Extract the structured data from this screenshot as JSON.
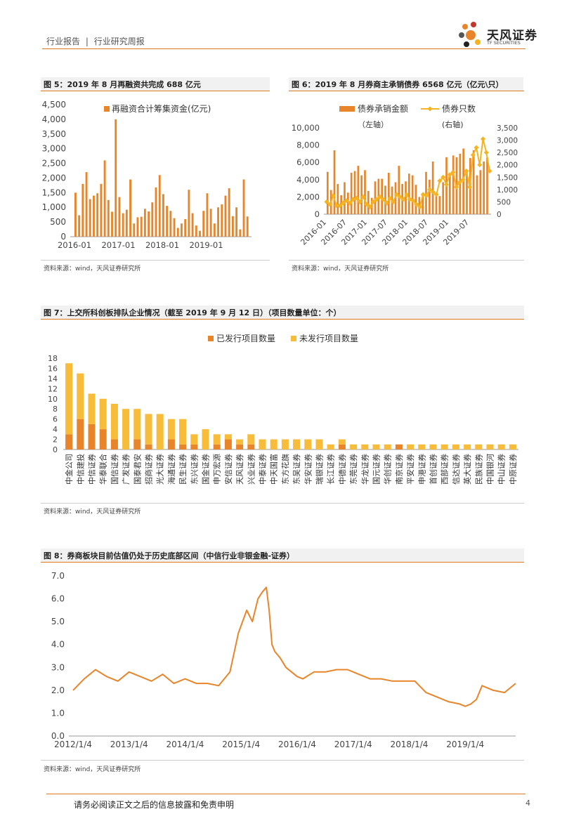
{
  "header": {
    "report_type": "行业报告",
    "separator": "|",
    "report_subtype": "行业研究周报",
    "logo_cn": "天风证券",
    "logo_en": "TF SECURITIES",
    "accent": "#e07a1f"
  },
  "figures": {
    "fig5": {
      "caption": "图 5：2019 年 8 月再融资共完成 688 亿元",
      "source": "资料来源：wind，天风证券研究所"
    },
    "fig6": {
      "caption": "图 6：2019 年 8 月券商主承销债券 6568 亿元（亿元\\只）",
      "source": "资料来源：wind，天风证券研究所"
    },
    "fig7": {
      "caption": "图 7：上交所科创板排队企业情况（截至 2019 年 9 月 12 日）（项目数量单位：个）",
      "source": "资料来源：wind，天风证券研究所"
    },
    "fig8": {
      "caption": "图 8：券商板块目前估值仍处于历史底部区间（中信行业非银金融-证券）",
      "source": "资料来源：wind，天风证券研究所"
    }
  },
  "footer": {
    "disclaimer": "请务必阅读正文之后的信息披露和免责申明",
    "page": "4"
  },
  "chart_data": [
    {
      "id": "fig5",
      "type": "bar",
      "color": "#e8852a",
      "series": [
        {
          "name": "再融资合计筹集资金(亿元)",
          "values": [
            1500,
            730,
            1800,
            2200,
            1280,
            1400,
            1480,
            1800,
            2600,
            1250,
            850,
            4000,
            1350,
            800,
            920,
            1950,
            450,
            660,
            680,
            950,
            860,
            1170,
            1680,
            2100,
            1450,
            1050,
            880,
            630,
            300,
            450,
            600,
            1600,
            800,
            380,
            200,
            880,
            1480,
            950,
            450,
            1000,
            1100,
            1400,
            1650,
            700,
            1000,
            250,
            1950,
            688
          ]
        }
      ],
      "x_tick_labels": [
        "2016-01",
        "2017-01",
        "2018-01",
        "2019-01"
      ],
      "ylim": [
        0,
        4500
      ],
      "y_ticks": [
        "0",
        "500",
        "1,000",
        "1,500",
        "2,000",
        "2,500",
        "3,000",
        "3,500",
        "4,000",
        "4,500"
      ],
      "legend": "top-center",
      "grid": false
    },
    {
      "id": "fig6",
      "type": "bar+line",
      "series": [
        {
          "name": "债券承销金额",
          "name_note": "（左轴）",
          "axis": "left",
          "type": "bar",
          "color": "#e8852a",
          "values": [
            4900,
            2800,
            7400,
            3500,
            2200,
            3700,
            2500,
            4800,
            5000,
            5600,
            4500,
            5100,
            2700,
            1900,
            3800,
            4100,
            4100,
            3300,
            4800,
            3200,
            3700,
            5600,
            3500,
            3800,
            4700,
            4500,
            3400,
            2000,
            2400,
            4900,
            4000,
            6100,
            2100,
            2100,
            3700,
            6600,
            4400,
            6800,
            6600,
            7000,
            7600,
            5000,
            6500,
            7400,
            4500,
            5100,
            6100,
            6568
          ]
        },
        {
          "name": "债券只数",
          "name_note": "(右轴)",
          "axis": "right",
          "type": "line",
          "color": "#f4b321",
          "values": [
            500,
            400,
            750,
            350,
            350,
            450,
            550,
            450,
            600,
            650,
            500,
            700,
            400,
            300,
            500,
            600,
            700,
            600,
            450,
            650,
            500,
            800,
            700,
            600,
            800,
            600,
            550,
            400,
            300,
            800,
            750,
            1000,
            900,
            800,
            1350,
            1500,
            1200,
            1600,
            1700,
            1100,
            1300,
            1400,
            1750,
            1100,
            2400,
            2700,
            2000,
            3050,
            2500,
            1750
          ]
        }
      ],
      "x_tick_labels": [
        "2016-01",
        "2016-07",
        "2017-01",
        "2017-07",
        "2018-01",
        "2018-07",
        "2019-01",
        "2019-07"
      ],
      "ylim_left": [
        0,
        10000
      ],
      "y_ticks_left": [
        "0",
        "2,000",
        "4,000",
        "6,000",
        "8,000",
        "10,000"
      ],
      "ylim_right": [
        0,
        3500
      ],
      "y_ticks_right": [
        "0",
        "500",
        "1,000",
        "1,500",
        "2,000",
        "2,500",
        "3,000",
        "3,500"
      ],
      "legend": "top"
    },
    {
      "id": "fig7",
      "type": "stacked-bar",
      "categories": [
        "中金公司",
        "中信建投",
        "中信证券",
        "华泰联合",
        "国信证券",
        "广发证券",
        "国泰君安",
        "招商证券",
        "光大证券",
        "海通证券",
        "民生证券",
        "东兴证券",
        "国金证券",
        "申万宏源",
        "安信证券",
        "天风证券",
        "兴业证券",
        "中泰证券",
        "中天国富",
        "东方花旗",
        "东吴证券",
        "华安证券",
        "瑞银证券",
        "长江证券",
        "中德证券",
        "东莞证券",
        "华龙证券",
        "国元证券",
        "华创证券",
        "南京证券",
        "平安证券",
        "申港证券",
        "首创证券",
        "西部证券",
        "信达证券",
        "英大证券",
        "民族证券",
        "中国银河",
        "中山证券",
        "中原证券"
      ],
      "series": [
        {
          "name": "已发行项目数量",
          "color": "#e8852a",
          "values": [
            3,
            6,
            5,
            4,
            2,
            0,
            2,
            1,
            0,
            2,
            1,
            1,
            0,
            1,
            2,
            1,
            1,
            0,
            0,
            0,
            0,
            0,
            0,
            0,
            1,
            0,
            0,
            0,
            0,
            1,
            0,
            0,
            0,
            0,
            0,
            0,
            0,
            0,
            0,
            0
          ]
        },
        {
          "name": "未发行项目数量",
          "color": "#f7bc3a",
          "values": [
            14,
            9,
            6,
            6,
            7,
            8,
            6,
            6,
            7,
            4,
            5,
            2,
            4,
            2,
            1,
            1,
            2,
            2,
            2,
            2,
            2,
            2,
            2,
            1,
            1,
            1,
            1,
            1,
            1,
            0,
            1,
            1,
            1,
            1,
            1,
            1,
            1,
            1,
            1,
            1
          ]
        }
      ],
      "ylim": [
        0,
        18
      ],
      "y_ticks": [
        "0",
        "2",
        "4",
        "6",
        "8",
        "10",
        "12",
        "14",
        "16",
        "18"
      ],
      "legend": "top-center"
    },
    {
      "id": "fig8",
      "type": "line",
      "color": "#e8852a",
      "x_tick_labels": [
        "2012/1/4",
        "2013/1/4",
        "2014/1/4",
        "2015/1/4",
        "2016/1/4",
        "2017/1/4",
        "2018/1/4",
        "2019/1/4"
      ],
      "ylim": [
        0,
        7.0
      ],
      "y_ticks": [
        "0.0",
        "1.0",
        "2.0",
        "3.0",
        "4.0",
        "5.0",
        "6.0",
        "7.0"
      ],
      "series": [
        {
          "x": [
            2012.0,
            2012.2,
            2012.4,
            2012.6,
            2012.8,
            2013.0,
            2013.2,
            2013.4,
            2013.6,
            2013.8,
            2014.0,
            2014.2,
            2014.4,
            2014.6,
            2014.8,
            2014.95,
            2015.1,
            2015.2,
            2015.3,
            2015.38,
            2015.45,
            2015.5,
            2015.55,
            2015.6,
            2015.7,
            2015.8,
            2015.9,
            2016.0,
            2016.1,
            2016.3,
            2016.5,
            2016.7,
            2016.9,
            2017.1,
            2017.3,
            2017.5,
            2017.7,
            2017.9,
            2018.1,
            2018.3,
            2018.5,
            2018.7,
            2018.9,
            2019.0,
            2019.1,
            2019.2,
            2019.3,
            2019.5,
            2019.7,
            2019.9
          ],
          "y": [
            2.0,
            2.5,
            2.9,
            2.6,
            2.4,
            2.8,
            2.6,
            2.4,
            2.7,
            2.3,
            2.5,
            2.3,
            2.3,
            2.2,
            2.8,
            4.5,
            5.5,
            5.0,
            6.0,
            6.3,
            6.5,
            5.5,
            4.0,
            3.7,
            3.4,
            3.0,
            2.8,
            2.6,
            2.5,
            2.8,
            2.8,
            2.9,
            2.9,
            2.7,
            2.5,
            2.5,
            2.4,
            2.4,
            2.4,
            1.9,
            1.7,
            1.5,
            1.4,
            1.3,
            1.4,
            1.6,
            2.2,
            2.0,
            1.9,
            2.3
          ]
        }
      ]
    }
  ]
}
